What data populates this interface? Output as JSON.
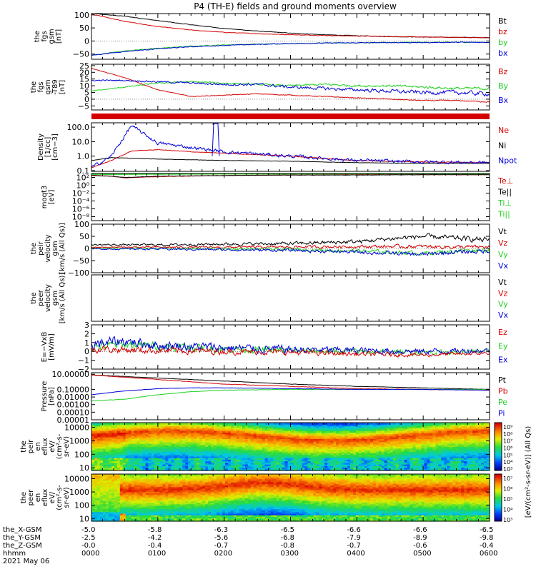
{
  "title": "P4 (TH-E) fields and ground moments overview",
  "colors": {
    "black": "#000000",
    "red": "#d40000",
    "green": "#1fd01f",
    "blue": "#0000d8"
  },
  "panels": [
    {
      "id": "fgs",
      "ylabel": [
        "the",
        "fgs",
        "gsm",
        "[nT]"
      ],
      "ticks": [
        {
          "v": 100,
          "t": "100"
        },
        {
          "v": 50,
          "t": "50"
        },
        {
          "v": 0,
          "t": "0"
        },
        {
          "v": -50,
          "t": "−50"
        }
      ],
      "yrange": [
        -70,
        105
      ],
      "legend": [
        {
          "t": "Bt",
          "c": "black"
        },
        {
          "t": "bz",
          "c": "red"
        },
        {
          "t": "by",
          "c": "green"
        },
        {
          "t": "bx",
          "c": "blue"
        }
      ]
    },
    {
      "id": "fgs2",
      "ylabel": [
        "the",
        "fgs",
        "gsm",
        "-T89",
        "[nT]"
      ],
      "ticks": [
        {
          "v": 25,
          "t": "25"
        },
        {
          "v": 20,
          "t": "20"
        },
        {
          "v": 15,
          "t": "15"
        },
        {
          "v": 10,
          "t": "10"
        },
        {
          "v": 5,
          "t": "5"
        },
        {
          "v": 0,
          "t": "0"
        },
        {
          "v": -5,
          "t": "−5"
        }
      ],
      "yrange": [
        -8,
        26
      ],
      "legend": [
        {
          "t": "Bz",
          "c": "red"
        },
        {
          "t": "By",
          "c": "green"
        },
        {
          "t": "Bx",
          "c": "blue"
        }
      ]
    },
    {
      "id": "dens",
      "ylabel": [
        "Density",
        "[1/cc]",
        "[cm−3]"
      ],
      "ticks": [
        {
          "v": 2,
          "t": "100.0"
        },
        {
          "v": 1,
          "t": "10.0"
        },
        {
          "v": 0,
          "t": "1.0"
        },
        {
          "v": -1,
          "t": "0.1"
        }
      ],
      "yrange": [
        -1.05,
        2.3
      ],
      "legend": [
        {
          "t": "Ne",
          "c": "red"
        },
        {
          "t": "Ni",
          "c": "black"
        },
        {
          "t": "Npot",
          "c": "blue"
        }
      ]
    },
    {
      "id": "temp",
      "ylabel": [
        "moqt3",
        "[eV]"
      ],
      "ticks": [
        {
          "v": 2,
          "t": "10²"
        },
        {
          "v": 0,
          "t": "10⁰"
        },
        {
          "v": -2,
          "t": "10⁻²"
        },
        {
          "v": -4,
          "t": "10⁻⁴"
        },
        {
          "v": -6,
          "t": "10⁻⁶"
        },
        {
          "v": -8,
          "t": "10⁻⁸"
        }
      ],
      "yrange": [
        -9,
        3
      ],
      "legend": [
        {
          "t": "Te⊥",
          "c": "red"
        },
        {
          "t": "Te||",
          "c": "black"
        },
        {
          "t": "Ti⊥",
          "c": "green"
        },
        {
          "t": "Ti||",
          "c": "green"
        }
      ]
    },
    {
      "id": "peir",
      "ylabel": [
        "the",
        "peir",
        "velocity",
        "gsm",
        "[km/s (All Qs)]"
      ],
      "ticks": [
        {
          "v": 100,
          "t": "100"
        },
        {
          "v": 50,
          "t": "50"
        },
        {
          "v": 0,
          "t": "0"
        },
        {
          "v": -50,
          "t": "−50"
        },
        {
          "v": -100,
          "t": "−100"
        }
      ],
      "yrange": [
        -100,
        100
      ],
      "legend": [
        {
          "t": "Vt",
          "c": "black"
        },
        {
          "t": "Vz",
          "c": "red"
        },
        {
          "t": "Vy",
          "c": "green"
        },
        {
          "t": "Vx",
          "c": "blue"
        }
      ]
    },
    {
      "id": "peer",
      "ylabel": [
        "the",
        "peer",
        "velocity",
        "gsm",
        "[km/s (All Qs)]"
      ],
      "ticks": [],
      "yrange": [
        -100,
        100
      ],
      "legend": [
        {
          "t": "Vt",
          "c": "black"
        },
        {
          "t": "Vz",
          "c": "red"
        },
        {
          "t": "Vy",
          "c": "green"
        },
        {
          "t": "Vx",
          "c": "blue"
        }
      ]
    },
    {
      "id": "efield",
      "ylabel": [
        "E=−VxB",
        "[mV/m]"
      ],
      "ticks": [
        {
          "v": 3,
          "t": "3"
        },
        {
          "v": 2,
          "t": "2"
        },
        {
          "v": 1,
          "t": "1"
        },
        {
          "v": 0,
          "t": "0"
        },
        {
          "v": -1,
          "t": "−1"
        },
        {
          "v": -2,
          "t": "−2"
        }
      ],
      "yrange": [
        -2,
        3
      ],
      "legend": [
        {
          "t": "Ez",
          "c": "red"
        },
        {
          "t": "Ey",
          "c": "green"
        },
        {
          "t": "Ex",
          "c": "blue"
        }
      ]
    },
    {
      "id": "press",
      "ylabel": [
        "Pressure",
        "[nPa]"
      ],
      "ticks": [
        {
          "v": 1,
          "t": "10.00000"
        },
        {
          "v": -1,
          "t": "0.10000"
        },
        {
          "v": -2,
          "t": "0.01000"
        },
        {
          "v": -3,
          "t": "0.00100"
        },
        {
          "v": -4,
          "t": "0.00010"
        },
        {
          "v": -5,
          "t": "0.00001"
        }
      ],
      "yrange": [
        -5,
        1.2
      ],
      "legend": [
        {
          "t": "Pt",
          "c": "black"
        },
        {
          "t": "Pb",
          "c": "red"
        },
        {
          "t": "Pe",
          "c": "green"
        },
        {
          "t": "Pi",
          "c": "blue"
        }
      ]
    },
    {
      "id": "ieflux",
      "ylabel": [
        "the",
        "peir",
        "en",
        "eflux",
        "eV/",
        "(cm²-s-",
        "sr-eV)"
      ],
      "ticks": [
        {
          "v": 4,
          "t": "10000"
        },
        {
          "v": 3,
          "t": "1000"
        },
        {
          "v": 2,
          "t": "100"
        },
        {
          "v": 1,
          "t": "10"
        }
      ],
      "yrange": [
        0.8,
        4.35
      ],
      "legend": []
    },
    {
      "id": "eeflux",
      "ylabel": [
        "the",
        "peer",
        "en",
        "eflux",
        "eV/",
        "(cm²-s-",
        "sr-eV)"
      ],
      "ticks": [
        {
          "v": 4,
          "t": "10000"
        },
        {
          "v": 3,
          "t": "1000"
        },
        {
          "v": 2,
          "t": "100"
        },
        {
          "v": 1,
          "t": "10"
        }
      ],
      "yrange": [
        0.8,
        4.35
      ],
      "legend": []
    }
  ],
  "colorbar": {
    "label": "[eV/(cm²-s-sr-eV)] (All Qs)",
    "ticks_top": [
      "10⁹",
      "10⁸",
      "10⁷",
      "10⁶",
      "10⁵",
      "10⁴",
      "10³"
    ],
    "ticks_bottom": [
      "10⁷",
      "10⁶",
      "10⁵",
      "10⁴",
      "10³"
    ]
  },
  "xaxis": {
    "row_labels": [
      "the_X-GSM",
      "the_Y-GSM",
      "the_Z-GSM",
      "hhmm",
      "2021 May 06"
    ],
    "ticks": [
      {
        "h": 0,
        "x": "-5.0",
        "y": "-2.5",
        "z": "-0.0",
        "t": "0000"
      },
      {
        "h": 1,
        "x": "-5.8",
        "y": "-4.2",
        "z": "-0.4",
        "t": "0100"
      },
      {
        "h": 2,
        "x": "-6.3",
        "y": "-5.6",
        "z": "-0.7",
        "t": "0200"
      },
      {
        "h": 3,
        "x": "-6.5",
        "y": "-6.8",
        "z": "-0.8",
        "t": "0300"
      },
      {
        "h": 4,
        "x": "-6.6",
        "y": "-7.9",
        "z": "-0.7",
        "t": "0400"
      },
      {
        "h": 5,
        "x": "-6.6",
        "y": "-8.9",
        "z": "-0.6",
        "t": "0500"
      },
      {
        "h": 6,
        "x": "-6.5",
        "y": "-9.8",
        "z": "-0.4",
        "t": "0600"
      }
    ]
  },
  "chart_data": [
    {
      "type": "line",
      "panel": "fgs",
      "xlabel": "hhmm",
      "x": [
        0,
        0.5,
        1,
        1.5,
        2,
        2.5,
        3,
        3.5,
        4,
        4.5,
        5,
        5.5,
        6
      ],
      "series": [
        {
          "name": "Bt",
          "values": [
            105,
            95,
            78,
            62,
            48,
            38,
            30,
            24,
            20,
            17,
            15,
            14,
            13
          ]
        },
        {
          "name": "bz",
          "values": [
            103,
            75,
            55,
            42,
            33,
            28,
            24,
            21,
            19,
            17,
            15,
            14,
            12
          ]
        },
        {
          "name": "by",
          "values": [
            -55,
            -38,
            -28,
            -20,
            -15,
            -12,
            -10,
            -8,
            -7,
            -6,
            -5,
            -5,
            -5
          ]
        },
        {
          "name": "bx",
          "values": [
            -55,
            -40,
            -30,
            -22,
            -17,
            -13,
            -10,
            -8,
            -7,
            -6,
            -6,
            -5,
            -5
          ]
        }
      ]
    },
    {
      "type": "line",
      "panel": "fgs2",
      "x": [
        0,
        0.5,
        1,
        1.5,
        2,
        2.5,
        3,
        3.5,
        4,
        4.5,
        5,
        5.5,
        6
      ],
      "series": [
        {
          "name": "Bz",
          "values": [
            23,
            16,
            7,
            2,
            3,
            4,
            3,
            2,
            1,
            0,
            -1,
            -1,
            -2
          ]
        },
        {
          "name": "By",
          "values": [
            6,
            9,
            12,
            13,
            12,
            11,
            10,
            11,
            10,
            10,
            9,
            8,
            8
          ]
        },
        {
          "name": "Bx",
          "values": [
            14,
            14,
            13,
            12,
            11,
            11,
            9,
            8,
            7,
            6,
            5,
            5,
            4
          ]
        }
      ]
    },
    {
      "type": "line",
      "panel": "dens",
      "x": [
        0,
        0.3,
        0.6,
        1,
        1.5,
        2,
        3,
        4,
        5,
        6
      ],
      "series": [
        {
          "name": "Ne",
          "values": [
            -0.8,
            -0.3,
            0.35,
            0.45,
            0.3,
            0.2,
            0,
            -0.3,
            -0.4,
            -0.45
          ]
        },
        {
          "name": "Ni",
          "values": [
            -0.3,
            -0.1,
            -0.15,
            -0.2,
            -0.25,
            -0.3,
            -0.35,
            -0.45,
            -0.5,
            -0.5
          ]
        },
        {
          "name": "Npot",
          "values": [
            -0.8,
            0,
            2.1,
            0.9,
            0.6,
            0.3,
            0,
            -0.3,
            -0.4,
            -0.45
          ]
        }
      ]
    },
    {
      "type": "line",
      "panel": "temp",
      "x": [
        0,
        0.3,
        0.5,
        1,
        2,
        3,
        4,
        5,
        6
      ],
      "series": [
        {
          "name": "Te⊥",
          "values": [
            2.6,
            2.3,
            1.9,
            2.2,
            2.5,
            2.6,
            2.7,
            2.7,
            2.7
          ]
        },
        {
          "name": "Te||",
          "values": [
            2.5,
            2.3,
            2.0,
            2.3,
            2.5,
            2.6,
            2.6,
            2.7,
            2.7
          ]
        },
        {
          "name": "Ti⊥",
          "values": [
            2.8,
            2.8,
            2.8,
            2.85,
            2.85,
            2.9,
            2.9,
            2.9,
            2.9
          ]
        },
        {
          "name": "Ti||",
          "values": [
            2.75,
            2.75,
            2.8,
            2.8,
            2.85,
            2.85,
            2.9,
            2.9,
            2.9
          ]
        }
      ]
    },
    {
      "type": "line",
      "panel": "peir",
      "x": [
        0,
        1,
        2,
        3,
        4,
        4.5,
        5,
        5.5,
        6
      ],
      "series": [
        {
          "name": "Vt",
          "values": [
            15,
            15,
            18,
            20,
            28,
            40,
            50,
            42,
            35
          ]
        },
        {
          "name": "Vz",
          "values": [
            5,
            5,
            5,
            6,
            8,
            8,
            8,
            6,
            5
          ]
        },
        {
          "name": "Vy",
          "values": [
            0,
            0,
            -2,
            -4,
            -10,
            -15,
            -20,
            -10,
            -5
          ]
        },
        {
          "name": "Vx",
          "values": [
            -2,
            -2,
            -5,
            -8,
            -15,
            -20,
            -25,
            -15,
            -10
          ]
        }
      ]
    },
    {
      "type": "line",
      "panel": "efield",
      "x": [
        0,
        0.5,
        1,
        2,
        3,
        4,
        5,
        6
      ],
      "series": [
        {
          "name": "Ez",
          "values": [
            0.5,
            0.8,
            0.6,
            0.3,
            0.1,
            0.0,
            -0.1,
            0.0
          ]
        },
        {
          "name": "Ey",
          "values": [
            0.8,
            1.2,
            0.7,
            0.4,
            0.2,
            0.1,
            0.0,
            0.1
          ]
        },
        {
          "name": "Ex",
          "values": [
            0.3,
            0.2,
            0.1,
            0.0,
            -0.1,
            -0.3,
            -0.4,
            -0.2
          ]
        }
      ]
    },
    {
      "type": "line",
      "panel": "press",
      "x": [
        0,
        0.5,
        1,
        1.5,
        2,
        3,
        4,
        5,
        6
      ],
      "series": [
        {
          "name": "Pt",
          "values": [
            0.9,
            0.7,
            0.5,
            0.3,
            0.1,
            -0.3,
            -0.6,
            -0.8,
            -1.0
          ]
        },
        {
          "name": "Pb",
          "values": [
            0.9,
            0.6,
            0.3,
            0.0,
            -0.3,
            -0.6,
            -0.9,
            -1.0,
            -1.1
          ]
        },
        {
          "name": "Pe",
          "values": [
            -2.5,
            -2.3,
            -1.7,
            -1.3,
            -1.1,
            -1.0,
            -1.0,
            -1.0,
            -1.0
          ]
        },
        {
          "name": "Pi",
          "values": [
            -1.7,
            -1.2,
            -0.9,
            -0.8,
            -0.8,
            -0.9,
            -1.0,
            -1.0,
            -1.1
          ]
        }
      ]
    },
    {
      "type": "heatmap",
      "panel": "ieflux",
      "x_range": [
        0,
        6
      ],
      "y_range_log": [
        1,
        4.3
      ],
      "z_label": "[eV/(cm²-s-sr-eV)] (All Qs)"
    },
    {
      "type": "heatmap",
      "panel": "eeflux",
      "x_range": [
        0,
        6
      ],
      "y_range_log": [
        1,
        4.3
      ],
      "z_label": "[eV/(cm²-s-sr-eV)] (All Qs)"
    }
  ]
}
